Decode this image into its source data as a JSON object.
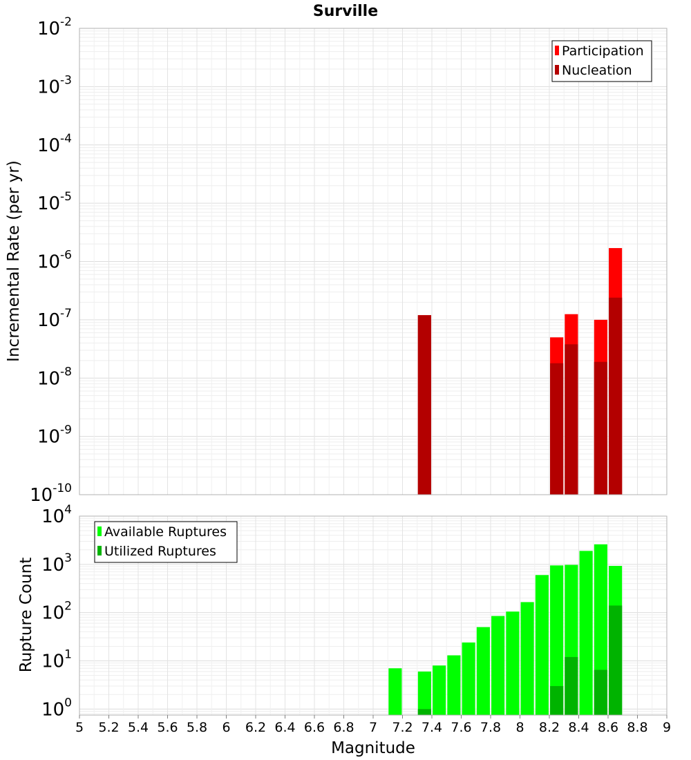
{
  "title": "Surville",
  "x_axis": {
    "label": "Magnitude",
    "min": 5,
    "max": 9,
    "ticks": [
      "5",
      "5.2",
      "5.4",
      "5.6",
      "5.8",
      "6",
      "6.2",
      "6.4",
      "6.6",
      "6.8",
      "7",
      "7.2",
      "7.4",
      "7.6",
      "7.8",
      "8",
      "8.2",
      "8.4",
      "8.6",
      "8.8",
      "9"
    ]
  },
  "chart_data": [
    {
      "type": "bar",
      "ylabel": "Incremental Rate (per yr)",
      "yscale": "log",
      "ylim": [
        1e-10,
        0.01
      ],
      "y_ticks": [
        {
          "value": 1e-10,
          "base": "10",
          "exp": "-10"
        },
        {
          "value": 1e-09,
          "base": "10",
          "exp": "-9"
        },
        {
          "value": 1e-08,
          "base": "10",
          "exp": "-8"
        },
        {
          "value": 1e-07,
          "base": "10",
          "exp": "-7"
        },
        {
          "value": 1e-06,
          "base": "10",
          "exp": "-6"
        },
        {
          "value": 1e-05,
          "base": "10",
          "exp": "-5"
        },
        {
          "value": 0.0001,
          "base": "10",
          "exp": "-4"
        },
        {
          "value": 0.001,
          "base": "10",
          "exp": "-3"
        },
        {
          "value": 0.01,
          "base": "10",
          "exp": "-2"
        }
      ],
      "grid": true,
      "legend_position": "top-right",
      "bar_width": 0.09,
      "series": [
        {
          "name": "Participation",
          "color": "#ff0000",
          "x": [
            7.35,
            8.25,
            8.35,
            8.55,
            8.65
          ],
          "values": [
            1.2e-07,
            5e-08,
            1.25e-07,
            1e-07,
            1.7e-06
          ]
        },
        {
          "name": "Nucleation",
          "color": "#b30000",
          "x": [
            7.35,
            8.25,
            8.35,
            8.55,
            8.65
          ],
          "values": [
            1.2e-07,
            1.8e-08,
            3.8e-08,
            1.9e-08,
            2.4e-07
          ]
        }
      ]
    },
    {
      "type": "bar",
      "ylabel": "Rupture Count",
      "yscale": "log",
      "ylim": [
        0.75,
        10000
      ],
      "y_ticks": [
        {
          "value": 1,
          "base": "10",
          "exp": "0"
        },
        {
          "value": 10,
          "base": "10",
          "exp": "1"
        },
        {
          "value": 100,
          "base": "10",
          "exp": "2"
        },
        {
          "value": 1000,
          "base": "10",
          "exp": "3"
        },
        {
          "value": 10000,
          "base": "10",
          "exp": "4"
        }
      ],
      "grid": true,
      "legend_position": "top-left",
      "bar_width": 0.09,
      "series": [
        {
          "name": "Available Ruptures",
          "color": "#00ff00",
          "x": [
            7.15,
            7.35,
            7.45,
            7.55,
            7.65,
            7.75,
            7.85,
            7.95,
            8.05,
            8.15,
            8.25,
            8.35,
            8.45,
            8.55,
            8.65
          ],
          "values": [
            7,
            6,
            8,
            13,
            24,
            50,
            85,
            105,
            165,
            600,
            950,
            975,
            1900,
            2600,
            930
          ]
        },
        {
          "name": "Utilized Ruptures",
          "color": "#00b300",
          "x": [
            7.35,
            8.25,
            8.35,
            8.55,
            8.65
          ],
          "values": [
            1,
            3,
            12,
            6.5,
            140
          ]
        }
      ]
    }
  ]
}
